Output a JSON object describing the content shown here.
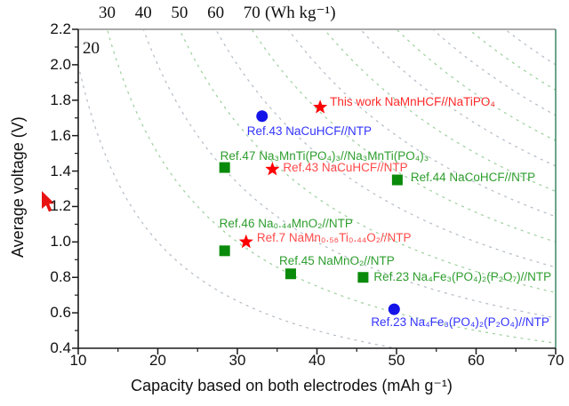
{
  "chart_data": {
    "type": "scatter",
    "title": "",
    "xlabel": "Capacity based on both electrodes (mAh g⁻¹)",
    "ylabel": "Average voltage (V)",
    "xlim": [
      10,
      70
    ],
    "ylim": [
      0.4,
      2.2
    ],
    "grid": false,
    "x_major_ticks": [
      10,
      20,
      30,
      40,
      50,
      60,
      70
    ],
    "x_minor_ticks": [
      15,
      25,
      35,
      45,
      55,
      65
    ],
    "y_major_ticks": [
      "0.4",
      "0.6",
      "0.8",
      "1.0",
      "1.2",
      "1.4",
      "1.6",
      "1.8",
      "2.0",
      "2.2"
    ],
    "y_minor_ticks": [
      0.5,
      0.7,
      0.9,
      1.1,
      1.3,
      1.5,
      1.7,
      1.9,
      2.1
    ],
    "energy_contours": {
      "description": "Iso specific-energy hyperbolas, voltage = energy / capacity",
      "unit_label": "(Wh kg⁻¹)",
      "inside_label": "20",
      "top_labels": [
        30,
        40,
        50,
        60,
        70
      ],
      "drawn_values": [
        20,
        30,
        40,
        50,
        60,
        70,
        80,
        90,
        100,
        110,
        120,
        130,
        140
      ],
      "colors": [
        "#b4bcc6",
        "#9ccf9c"
      ],
      "dash": "3 5"
    },
    "series": [
      {
        "id": "this-work",
        "label": "This work NaMnHCF//NaTiPO₄",
        "marker": "star",
        "color": "#ff0000",
        "label_color": "#ff2a2a",
        "x": 40.4,
        "y": 1.76,
        "label_dx": 11,
        "label_dy": -6
      },
      {
        "id": "ref43-blue",
        "label": "Ref.43 NaCuHCF//NTP",
        "marker": "circle",
        "color": "#1414e8",
        "label_color": "#3434ff",
        "x": 33.1,
        "y": 1.71,
        "label_dx": -17,
        "label_dy": 17
      },
      {
        "id": "ref47",
        "label": "Ref.47 Na₃MnTi(PO₄)₃//Na₃MnTi(PO₄)₃",
        "marker": "square",
        "color": "#0a8a0a",
        "label_color": "#2e9e2e",
        "x": 28.4,
        "y": 1.42,
        "label_dx": -5,
        "label_dy": -13
      },
      {
        "id": "ref43-red",
        "label": "Ref.43 NaCuHCF//NTP",
        "marker": "star",
        "color": "#ff0000",
        "label_color": "#ff4a4a",
        "x": 34.4,
        "y": 1.41,
        "label_dx": 12,
        "label_dy": -2
      },
      {
        "id": "ref44",
        "label": "Ref.44 NaCoHCF//NTP",
        "marker": "square",
        "color": "#0a8a0a",
        "label_color": "#2e9e2e",
        "x": 50.1,
        "y": 1.35,
        "label_dx": 15,
        "label_dy": -3
      },
      {
        "id": "ref46",
        "label": "Ref.46 Na₀.₄₄MnO₂//NTP",
        "marker": "square",
        "color": "#0a8a0a",
        "label_color": "#2e9e2e",
        "x": 28.4,
        "y": 0.95,
        "label_dx": -6,
        "label_dy": -30
      },
      {
        "id": "ref7",
        "label": "Ref.7 NaMn₀.₅₆Ti₀.₄₄O₂//NTP",
        "marker": "star",
        "color": "#ff0000",
        "label_color": "#ff4a4a",
        "x": 31.1,
        "y": 1.0,
        "label_dx": 12,
        "label_dy": -4
      },
      {
        "id": "ref45",
        "label": "Ref.45 NaMnO₂//NTP",
        "marker": "square",
        "color": "#0a8a0a",
        "label_color": "#2e9e2e",
        "x": 36.7,
        "y": 0.82,
        "label_dx": -13,
        "label_dy": -14
      },
      {
        "id": "ref23-green",
        "label": "Ref.23 Na₄Fe₃(PO₄)₂(P₂O₇)//NTP",
        "marker": "square",
        "color": "#0a8a0a",
        "label_color": "#2e9e2e",
        "x": 45.8,
        "y": 0.8,
        "label_dx": 12,
        "label_dy": 0
      },
      {
        "id": "ref23-blue",
        "label": "Ref.23 Na₄Fe₃(PO₄)₂(P₂O₄)//NTP",
        "marker": "circle",
        "color": "#1414e8",
        "label_color": "#3434ff",
        "x": 49.7,
        "y": 0.62,
        "label_dx": -26,
        "label_dy": 15
      }
    ]
  },
  "cursor": {
    "color": "#e81212"
  },
  "frame": {
    "top": "#a9a9a9",
    "right": "#2e7d5a",
    "left": "#1a1a1a",
    "bottom": "#1a1a1a"
  }
}
